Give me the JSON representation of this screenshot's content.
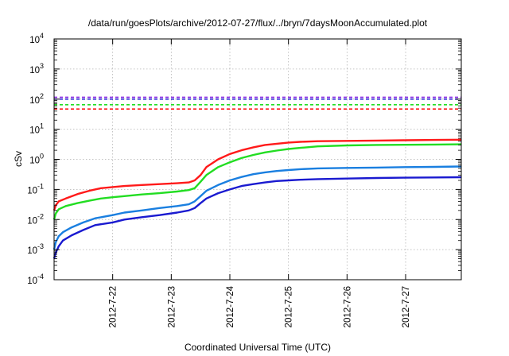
{
  "chart_data": {
    "type": "line",
    "title": "/data/run/goesPlots/archive/2012-07-27/flux/../bryn/7daysMoonAccumulated.plot",
    "xlabel": "Coordinated Universal Time (UTC)",
    "ylabel": "cSv",
    "yscale": "log",
    "ylim": [
      0.0001,
      10000
    ],
    "xlim": [
      21.0,
      27.95
    ],
    "grid": true,
    "y_ticks": [
      {
        "value": 0.0001,
        "base": "10",
        "exp": "-4"
      },
      {
        "value": 0.001,
        "base": "10",
        "exp": "-3"
      },
      {
        "value": 0.01,
        "base": "10",
        "exp": "-2"
      },
      {
        "value": 0.1,
        "base": "10",
        "exp": "-1"
      },
      {
        "value": 1,
        "base": "10",
        "exp": "0"
      },
      {
        "value": 10,
        "base": "10",
        "exp": "1"
      },
      {
        "value": 100,
        "base": "10",
        "exp": "2"
      },
      {
        "value": 1000,
        "base": "10",
        "exp": "3"
      },
      {
        "value": 10000,
        "base": "10",
        "exp": "4"
      }
    ],
    "x_ticks": [
      {
        "value": 22,
        "label": "2012-7-22"
      },
      {
        "value": 23,
        "label": "2012-7-23"
      },
      {
        "value": 24,
        "label": "2012-7-24"
      },
      {
        "value": 25,
        "label": "2012-7-25"
      },
      {
        "value": 26,
        "label": "2012-7-26"
      },
      {
        "value": 27,
        "label": "2012-7-27"
      }
    ],
    "thresholds": [
      {
        "value": 115,
        "color": "#8a2be2"
      },
      {
        "value": 100,
        "color": "#1a1ad0"
      },
      {
        "value": 65,
        "color": "#22dd22"
      },
      {
        "value": 47,
        "color": "#ff1a1a"
      }
    ],
    "series": [
      {
        "color": "#ff1a1a",
        "points": [
          [
            21.0,
            0.02
          ],
          [
            21.03,
            0.03
          ],
          [
            21.08,
            0.04
          ],
          [
            21.2,
            0.05
          ],
          [
            21.4,
            0.07
          ],
          [
            21.6,
            0.09
          ],
          [
            21.8,
            0.11
          ],
          [
            22.0,
            0.12
          ],
          [
            22.2,
            0.13
          ],
          [
            22.5,
            0.14
          ],
          [
            22.8,
            0.15
          ],
          [
            23.1,
            0.16
          ],
          [
            23.3,
            0.17
          ],
          [
            23.4,
            0.2
          ],
          [
            23.5,
            0.3
          ],
          [
            23.6,
            0.55
          ],
          [
            23.8,
            1.0
          ],
          [
            24.0,
            1.5
          ],
          [
            24.2,
            2.0
          ],
          [
            24.4,
            2.5
          ],
          [
            24.6,
            3.0
          ],
          [
            24.8,
            3.3
          ],
          [
            25.0,
            3.6
          ],
          [
            25.2,
            3.8
          ],
          [
            25.5,
            4.0
          ],
          [
            26.0,
            4.1
          ],
          [
            26.5,
            4.2
          ],
          [
            27.0,
            4.3
          ],
          [
            27.5,
            4.4
          ],
          [
            27.95,
            4.5
          ]
        ]
      },
      {
        "color": "#22dd22",
        "points": [
          [
            21.0,
            0.01
          ],
          [
            21.03,
            0.016
          ],
          [
            21.08,
            0.022
          ],
          [
            21.2,
            0.028
          ],
          [
            21.4,
            0.035
          ],
          [
            21.6,
            0.042
          ],
          [
            21.8,
            0.05
          ],
          [
            22.0,
            0.055
          ],
          [
            22.2,
            0.06
          ],
          [
            22.5,
            0.068
          ],
          [
            22.8,
            0.075
          ],
          [
            23.1,
            0.085
          ],
          [
            23.3,
            0.095
          ],
          [
            23.4,
            0.11
          ],
          [
            23.5,
            0.18
          ],
          [
            23.6,
            0.3
          ],
          [
            23.8,
            0.55
          ],
          [
            24.0,
            0.8
          ],
          [
            24.2,
            1.1
          ],
          [
            24.4,
            1.4
          ],
          [
            24.6,
            1.7
          ],
          [
            24.8,
            1.95
          ],
          [
            25.0,
            2.2
          ],
          [
            25.2,
            2.4
          ],
          [
            25.5,
            2.7
          ],
          [
            26.0,
            2.9
          ],
          [
            26.5,
            3.0
          ],
          [
            27.0,
            3.05
          ],
          [
            27.5,
            3.1
          ],
          [
            27.95,
            3.15
          ]
        ]
      },
      {
        "color": "#1a7fe0",
        "points": [
          [
            21.0,
            0.001
          ],
          [
            21.03,
            0.0018
          ],
          [
            21.08,
            0.0028
          ],
          [
            21.15,
            0.0038
          ],
          [
            21.3,
            0.0055
          ],
          [
            21.5,
            0.008
          ],
          [
            21.7,
            0.011
          ],
          [
            22.0,
            0.014
          ],
          [
            22.2,
            0.017
          ],
          [
            22.5,
            0.02
          ],
          [
            22.8,
            0.024
          ],
          [
            23.1,
            0.028
          ],
          [
            23.3,
            0.032
          ],
          [
            23.4,
            0.04
          ],
          [
            23.5,
            0.06
          ],
          [
            23.6,
            0.09
          ],
          [
            23.8,
            0.14
          ],
          [
            24.0,
            0.2
          ],
          [
            24.2,
            0.26
          ],
          [
            24.4,
            0.32
          ],
          [
            24.6,
            0.37
          ],
          [
            24.8,
            0.41
          ],
          [
            25.0,
            0.44
          ],
          [
            25.2,
            0.47
          ],
          [
            25.5,
            0.5
          ],
          [
            26.0,
            0.52
          ],
          [
            26.5,
            0.53
          ],
          [
            27.0,
            0.55
          ],
          [
            27.5,
            0.56
          ],
          [
            27.95,
            0.58
          ]
        ]
      },
      {
        "color": "#1a1ad0",
        "points": [
          [
            21.0,
            0.0005
          ],
          [
            21.03,
            0.0008
          ],
          [
            21.08,
            0.0013
          ],
          [
            21.15,
            0.002
          ],
          [
            21.3,
            0.003
          ],
          [
            21.5,
            0.0045
          ],
          [
            21.7,
            0.0065
          ],
          [
            22.0,
            0.008
          ],
          [
            22.2,
            0.01
          ],
          [
            22.5,
            0.012
          ],
          [
            22.8,
            0.014
          ],
          [
            23.1,
            0.017
          ],
          [
            23.3,
            0.02
          ],
          [
            23.4,
            0.024
          ],
          [
            23.5,
            0.035
          ],
          [
            23.6,
            0.05
          ],
          [
            23.8,
            0.075
          ],
          [
            24.0,
            0.1
          ],
          [
            24.2,
            0.13
          ],
          [
            24.4,
            0.15
          ],
          [
            24.6,
            0.17
          ],
          [
            24.8,
            0.19
          ],
          [
            25.0,
            0.2
          ],
          [
            25.2,
            0.21
          ],
          [
            25.5,
            0.22
          ],
          [
            26.0,
            0.23
          ],
          [
            26.5,
            0.24
          ],
          [
            27.0,
            0.245
          ],
          [
            27.5,
            0.25
          ],
          [
            27.95,
            0.255
          ]
        ]
      }
    ]
  }
}
